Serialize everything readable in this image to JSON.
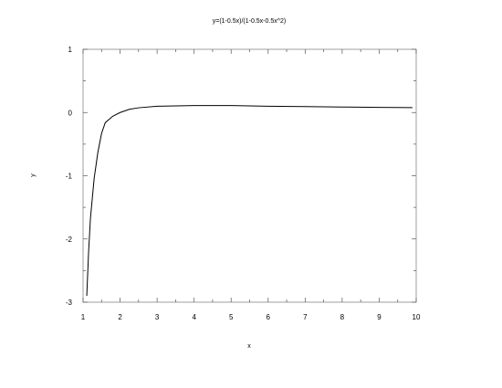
{
  "chart_data": {
    "type": "line",
    "title": "y=(1-0.5x)/(1-0.5x-0.5x^2)",
    "xlabel": "x",
    "ylabel": "y",
    "xlim": [
      1,
      10
    ],
    "ylim": [
      -3,
      1
    ],
    "xticks": [
      1,
      2,
      3,
      4,
      5,
      6,
      7,
      8,
      9,
      10
    ],
    "yticks": [
      -3,
      -2,
      -1,
      0,
      1
    ],
    "grid": false,
    "series": [
      {
        "x": [
          1.1,
          1.15,
          1.2,
          1.3,
          1.4,
          1.5,
          1.6,
          1.8,
          2.0,
          2.25,
          2.5,
          3.0,
          3.5,
          4.0,
          4.5,
          5.0,
          6.0,
          7.0,
          8.0,
          9.0,
          9.9
        ],
        "y": [
          -2.9,
          -2.2,
          -1.67,
          -1.04,
          -0.63,
          -0.33,
          -0.16,
          -0.06,
          0.0,
          0.05,
          0.075,
          0.1,
          0.105,
          0.11,
          0.11,
          0.11,
          0.1,
          0.093,
          0.087,
          0.081,
          0.077
        ]
      }
    ]
  }
}
